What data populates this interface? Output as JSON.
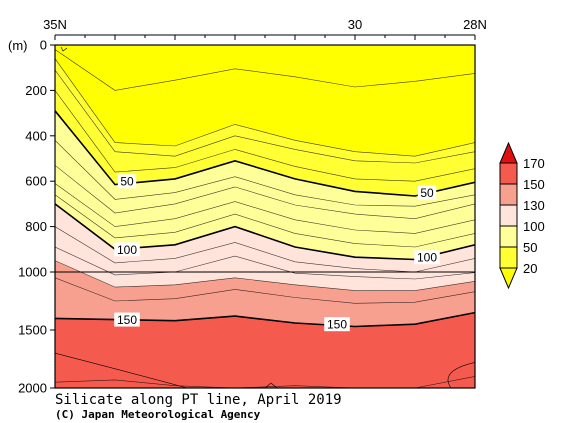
{
  "chart_data": {
    "type": "contour",
    "title": "Silicate along PT line, April 2019",
    "credit": "(C) Japan Meteorological Agency",
    "y_unit_label": "(m)",
    "x_axis": {
      "range": [
        35,
        28
      ],
      "ticks": [
        {
          "value": 35,
          "label": "35N"
        },
        {
          "value": 30,
          "label": "30"
        },
        {
          "value": 28,
          "label": "28N"
        }
      ]
    },
    "y_axis": {
      "range": [
        0,
        2000
      ],
      "inverted": true,
      "break_at": 1000,
      "ticks": [
        {
          "value": 0,
          "label": "0"
        },
        {
          "value": 200,
          "label": "200"
        },
        {
          "value": 400,
          "label": "400"
        },
        {
          "value": 600,
          "label": "600"
        },
        {
          "value": 800,
          "label": "800"
        },
        {
          "value": 1000,
          "label": "1000"
        },
        {
          "value": 1500,
          "label": "1500"
        },
        {
          "value": 2000,
          "label": "2000"
        }
      ]
    },
    "stations_lat": [
      35,
      34,
      33,
      32,
      31,
      30,
      29,
      28
    ],
    "contour_levels": [
      10,
      20,
      30,
      40,
      50,
      60,
      70,
      80,
      90,
      100,
      110,
      120,
      130,
      140,
      150,
      160
    ],
    "major_levels": [
      50,
      100,
      150
    ],
    "contours": [
      {
        "level": 10,
        "depths": [
          20,
          200,
          155,
          105,
          140,
          185,
          160,
          125
        ]
      },
      {
        "level": 20,
        "depths": [
          60,
          430,
          445,
          350,
          420,
          470,
          490,
          430
        ]
      },
      {
        "level": 30,
        "depths": [
          110,
          470,
          490,
          400,
          460,
          510,
          520,
          470
        ]
      },
      {
        "level": 40,
        "depths": [
          200,
          560,
          540,
          460,
          535,
          590,
          600,
          545
        ]
      },
      {
        "level": 50,
        "depths": [
          290,
          615,
          590,
          510,
          590,
          645,
          665,
          605
        ]
      },
      {
        "level": 60,
        "depths": [
          420,
          680,
          650,
          580,
          660,
          705,
          710,
          660
        ]
      },
      {
        "level": 70,
        "depths": [
          530,
          740,
          700,
          625,
          705,
          745,
          765,
          700
        ]
      },
      {
        "level": 80,
        "depths": [
          610,
          800,
          765,
          690,
          770,
          815,
          830,
          770
        ]
      },
      {
        "level": 90,
        "depths": [
          660,
          850,
          825,
          745,
          830,
          875,
          890,
          830
        ]
      },
      {
        "level": 100,
        "depths": [
          700,
          900,
          880,
          800,
          890,
          935,
          945,
          880
        ]
      },
      {
        "level": 110,
        "depths": [
          800,
          960,
          940,
          870,
          955,
          985,
          1000,
          940
        ]
      },
      {
        "level": 120,
        "depths": [
          890,
          1025,
          1000,
          930,
          1010,
          1040,
          1060,
          1005
        ]
      },
      {
        "level": 130,
        "depths": [
          950,
          1130,
          1110,
          1050,
          1110,
          1160,
          1160,
          1080
        ]
      },
      {
        "level": 140,
        "depths": [
          1050,
          1250,
          1230,
          1150,
          1220,
          1270,
          1260,
          1170
        ]
      },
      {
        "level": 150,
        "depths": [
          1400,
          1410,
          1420,
          1380,
          1440,
          1470,
          1450,
          1350
        ]
      },
      {
        "level": 160,
        "depths": [
          1950,
          1930,
          1980,
          2000,
          1980,
          2000,
          2000,
          1900
        ]
      }
    ],
    "contour_labels": [
      {
        "text": "50",
        "lat": 33.8,
        "depth": 600
      },
      {
        "text": "50",
        "lat": 28.8,
        "depth": 650
      },
      {
        "text": "100",
        "lat": 33.8,
        "depth": 900
      },
      {
        "text": "100",
        "lat": 28.8,
        "depth": 935
      },
      {
        "text": "150",
        "lat": 33.8,
        "depth": 1410
      },
      {
        "text": "150",
        "lat": 30.3,
        "depth": 1450
      }
    ],
    "legend": {
      "labels": [
        "20",
        "50",
        "100",
        "130",
        "150",
        "170"
      ],
      "colors": {
        "band_0_20": "#ffff00",
        "band_20_50": "#ffff33",
        "band_50_100": "#ffff99",
        "band_100_130": "#ffe4dc",
        "band_130_150": "#f7a090",
        "band_150_170": "#f55a4e",
        "band_above_170": "#e01010"
      }
    },
    "grid": false,
    "legend_placement": "right"
  }
}
